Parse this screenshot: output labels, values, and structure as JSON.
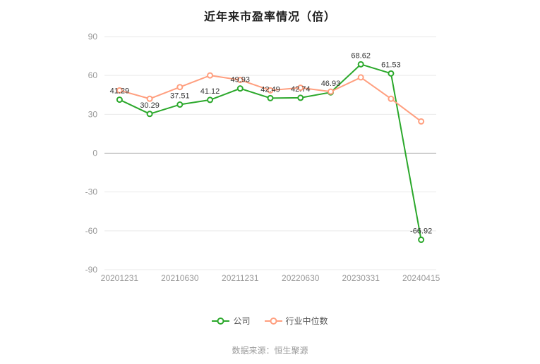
{
  "title": "近年来市盈率情况（倍）",
  "source": "数据来源：恒生聚源",
  "chart_data": {
    "type": "line",
    "x_labels": [
      "20201231",
      "20210630",
      "20211231",
      "20220630",
      "20230331",
      "20240415"
    ],
    "x_label_indices": [
      0,
      2,
      4,
      6,
      8,
      10
    ],
    "yticks": [
      90,
      60,
      30,
      0,
      -30,
      -60,
      -90
    ],
    "ylim": [
      -90,
      90
    ],
    "grid": true,
    "legend_position": "bottom",
    "series": [
      {
        "name": "公司",
        "color": "#2BA82B",
        "show_labels": true,
        "values": [
          41.29,
          30.29,
          37.51,
          41.12,
          49.93,
          42.49,
          42.74,
          46.93,
          68.62,
          61.53,
          -66.92
        ]
      },
      {
        "name": "行业中位数",
        "color": "#FF9F7F",
        "show_labels": false,
        "values": [
          48.5,
          42,
          51,
          60,
          56.5,
          48.5,
          50.5,
          47.5,
          58.5,
          42,
          24.5
        ]
      }
    ]
  }
}
